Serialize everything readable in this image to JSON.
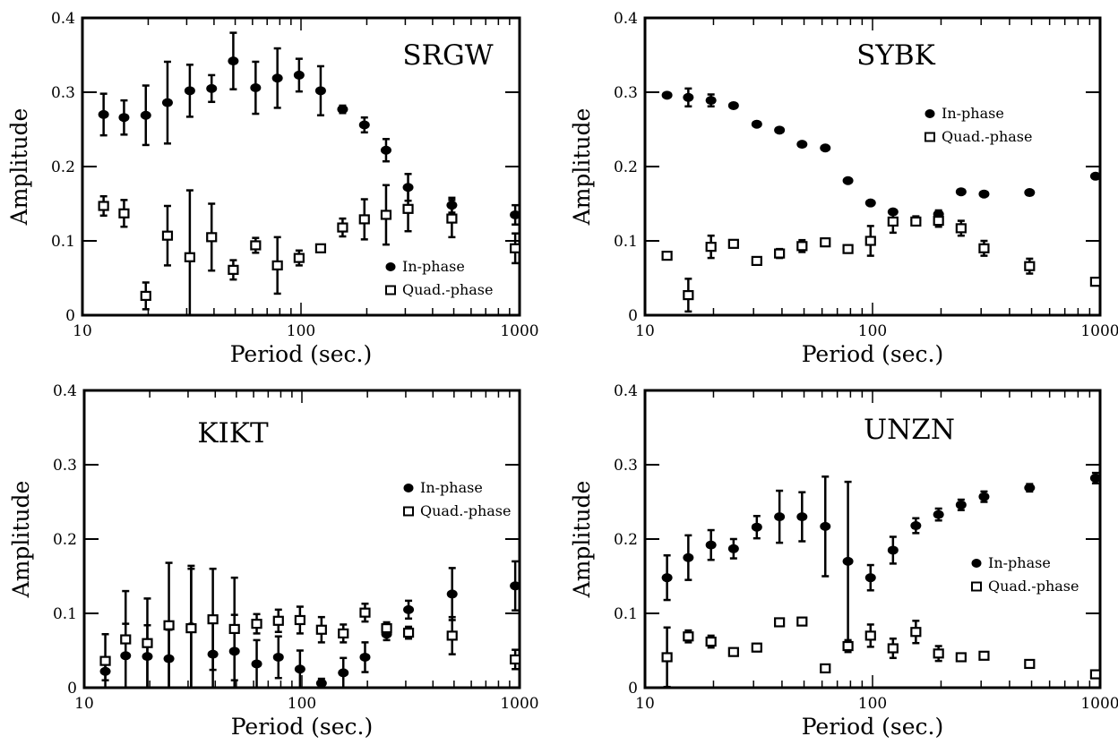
{
  "chart_data": [
    {
      "type": "scatter",
      "title": "SRGW",
      "xlabel": "Period (sec.)",
      "ylabel": "Amplitude",
      "xscale": "log",
      "xlim": [
        10,
        1000
      ],
      "ylim": [
        0,
        0.4
      ],
      "x_ticks": [
        "10",
        "100",
        "1000"
      ],
      "y_ticks": [
        "0",
        "0.1",
        "0.2",
        "0.3",
        "0.4"
      ],
      "grid": false,
      "legend_position": "lower-right",
      "series": [
        {
          "name": "In-phase",
          "marker": "filled-circle",
          "points": [
            {
              "x": 12.5,
              "y": 0.27,
              "err": 0.028
            },
            {
              "x": 15.5,
              "y": 0.266,
              "err": 0.023
            },
            {
              "x": 19.5,
              "y": 0.269,
              "err": 0.04
            },
            {
              "x": 24.5,
              "y": 0.286,
              "err": 0.055
            },
            {
              "x": 31,
              "y": 0.302,
              "err": 0.035
            },
            {
              "x": 39,
              "y": 0.305,
              "err": 0.018
            },
            {
              "x": 49,
              "y": 0.342,
              "err": 0.038
            },
            {
              "x": 62,
              "y": 0.306,
              "err": 0.035
            },
            {
              "x": 78,
              "y": 0.319,
              "err": 0.04
            },
            {
              "x": 98,
              "y": 0.323,
              "err": 0.022
            },
            {
              "x": 123,
              "y": 0.302,
              "err": 0.033
            },
            {
              "x": 155,
              "y": 0.277,
              "err": 0.005
            },
            {
              "x": 195,
              "y": 0.256,
              "err": 0.01
            },
            {
              "x": 245,
              "y": 0.222,
              "err": 0.015
            },
            {
              "x": 309,
              "y": 0.172,
              "err": 0.018
            },
            {
              "x": 490,
              "y": 0.148,
              "err": 0.01
            },
            {
              "x": 955,
              "y": 0.135,
              "err": 0.013
            }
          ]
        },
        {
          "name": "Quad.-phase",
          "marker": "open-square",
          "points": [
            {
              "x": 12.5,
              "y": 0.147,
              "err": 0.013
            },
            {
              "x": 15.5,
              "y": 0.137,
              "err": 0.018
            },
            {
              "x": 19.5,
              "y": 0.026,
              "err": 0.018
            },
            {
              "x": 24.5,
              "y": 0.107,
              "err": 0.04
            },
            {
              "x": 31,
              "y": 0.078,
              "err": 0.09
            },
            {
              "x": 39,
              "y": 0.105,
              "err": 0.045
            },
            {
              "x": 49,
              "y": 0.061,
              "err": 0.013
            },
            {
              "x": 62,
              "y": 0.094,
              "err": 0.01
            },
            {
              "x": 78,
              "y": 0.067,
              "err": 0.038
            },
            {
              "x": 98,
              "y": 0.077,
              "err": 0.01
            },
            {
              "x": 123,
              "y": 0.09,
              "err": 0.003
            },
            {
              "x": 155,
              "y": 0.118,
              "err": 0.012
            },
            {
              "x": 195,
              "y": 0.129,
              "err": 0.027
            },
            {
              "x": 245,
              "y": 0.135,
              "err": 0.04
            },
            {
              "x": 309,
              "y": 0.143,
              "err": 0.03
            },
            {
              "x": 490,
              "y": 0.13,
              "err": 0.025
            },
            {
              "x": 955,
              "y": 0.09,
              "err": 0.02
            }
          ]
        }
      ]
    },
    {
      "type": "scatter",
      "title": "SYBK",
      "xlabel": "Period (sec.)",
      "ylabel": "Amplitude",
      "xscale": "log",
      "xlim": [
        10,
        1000
      ],
      "ylim": [
        0,
        0.4
      ],
      "x_ticks": [
        "10",
        "100",
        "1000"
      ],
      "y_ticks": [
        "0",
        "0.1",
        "0.2",
        "0.3",
        "0.4"
      ],
      "grid": false,
      "legend_position": "upper-right",
      "series": [
        {
          "name": "In-phase",
          "marker": "filled-circle",
          "points": [
            {
              "x": 12.5,
              "y": 0.296,
              "err": 0
            },
            {
              "x": 15.5,
              "y": 0.293,
              "err": 0.012
            },
            {
              "x": 19.5,
              "y": 0.289,
              "err": 0.008
            },
            {
              "x": 24.5,
              "y": 0.282,
              "err": 0
            },
            {
              "x": 31,
              "y": 0.257,
              "err": 0
            },
            {
              "x": 39,
              "y": 0.249,
              "err": 0
            },
            {
              "x": 49,
              "y": 0.23,
              "err": 0
            },
            {
              "x": 62,
              "y": 0.225,
              "err": 0
            },
            {
              "x": 78,
              "y": 0.181,
              "err": 0
            },
            {
              "x": 98,
              "y": 0.151,
              "err": 0
            },
            {
              "x": 123,
              "y": 0.139,
              "err": 0
            },
            {
              "x": 155,
              "y": 0.128,
              "err": 0.005
            },
            {
              "x": 195,
              "y": 0.136,
              "err": 0.005
            },
            {
              "x": 245,
              "y": 0.166,
              "err": 0
            },
            {
              "x": 309,
              "y": 0.163,
              "err": 0
            },
            {
              "x": 490,
              "y": 0.165,
              "err": 0
            },
            {
              "x": 955,
              "y": 0.187,
              "err": 0
            }
          ]
        },
        {
          "name": "Quad.-phase",
          "marker": "open-square",
          "points": [
            {
              "x": 12.5,
              "y": 0.08,
              "err": 0
            },
            {
              "x": 15.5,
              "y": 0.027,
              "err": 0.022
            },
            {
              "x": 19.5,
              "y": 0.092,
              "err": 0.015
            },
            {
              "x": 24.5,
              "y": 0.096,
              "err": 0
            },
            {
              "x": 31,
              "y": 0.073,
              "err": 0
            },
            {
              "x": 39,
              "y": 0.083,
              "err": 0.006
            },
            {
              "x": 49,
              "y": 0.093,
              "err": 0.008
            },
            {
              "x": 62,
              "y": 0.098,
              "err": 0.005
            },
            {
              "x": 78,
              "y": 0.089,
              "err": 0.005
            },
            {
              "x": 98,
              "y": 0.1,
              "err": 0.02
            },
            {
              "x": 123,
              "y": 0.126,
              "err": 0.015
            },
            {
              "x": 155,
              "y": 0.126,
              "err": 0.005
            },
            {
              "x": 195,
              "y": 0.127,
              "err": 0.008
            },
            {
              "x": 245,
              "y": 0.117,
              "err": 0.01
            },
            {
              "x": 309,
              "y": 0.09,
              "err": 0.01
            },
            {
              "x": 490,
              "y": 0.066,
              "err": 0.01
            },
            {
              "x": 955,
              "y": 0.045,
              "err": 0.005
            }
          ]
        }
      ]
    },
    {
      "type": "scatter",
      "title": "KIKT",
      "xlabel": "Period (sec.)",
      "ylabel": "Amplitude",
      "xscale": "log",
      "xlim": [
        10,
        1000
      ],
      "ylim": [
        0,
        0.4
      ],
      "x_ticks": [
        "10",
        "100",
        "1000"
      ],
      "y_ticks": [
        "0",
        "0.1",
        "0.2",
        "0.3",
        "0.4"
      ],
      "grid": false,
      "legend_position": "upper-right",
      "series": [
        {
          "name": "In-phase",
          "marker": "filled-circle",
          "points": [
            {
              "x": 12.5,
              "y": 0.022,
              "err": 0.012
            },
            {
              "x": 15.5,
              "y": 0.043,
              "err": 0.043
            },
            {
              "x": 19.5,
              "y": 0.042,
              "err": 0.042
            },
            {
              "x": 24.5,
              "y": 0.039,
              "err": 0.039
            },
            {
              "x": 31,
              "y": 0.082,
              "err": 0.082
            },
            {
              "x": 39,
              "y": 0.045,
              "err": 0.045
            },
            {
              "x": 49,
              "y": 0.049,
              "err": 0.049
            },
            {
              "x": 62,
              "y": 0.032,
              "err": 0.032
            },
            {
              "x": 78,
              "y": 0.041,
              "err": 0.028
            },
            {
              "x": 98,
              "y": 0.025,
              "err": 0.025
            },
            {
              "x": 123,
              "y": 0.006,
              "err": 0.006
            },
            {
              "x": 155,
              "y": 0.02,
              "err": 0.02
            },
            {
              "x": 195,
              "y": 0.041,
              "err": 0.02
            },
            {
              "x": 245,
              "y": 0.072,
              "err": 0.008
            },
            {
              "x": 309,
              "y": 0.105,
              "err": 0.012
            },
            {
              "x": 490,
              "y": 0.126,
              "err": 0.035
            },
            {
              "x": 955,
              "y": 0.137,
              "err": 0.033
            }
          ]
        },
        {
          "name": "Quad.-phase",
          "marker": "open-square",
          "points": [
            {
              "x": 12.5,
              "y": 0.036,
              "err": 0.036
            },
            {
              "x": 15.5,
              "y": 0.065,
              "err": 0.065
            },
            {
              "x": 19.5,
              "y": 0.06,
              "err": 0.06
            },
            {
              "x": 24.5,
              "y": 0.084,
              "err": 0.084
            },
            {
              "x": 31,
              "y": 0.08,
              "err": 0.08
            },
            {
              "x": 39,
              "y": 0.092,
              "err": 0.068
            },
            {
              "x": 49,
              "y": 0.079,
              "err": 0.069
            },
            {
              "x": 62,
              "y": 0.086,
              "err": 0.013
            },
            {
              "x": 78,
              "y": 0.09,
              "err": 0.015
            },
            {
              "x": 98,
              "y": 0.091,
              "err": 0.018
            },
            {
              "x": 123,
              "y": 0.078,
              "err": 0.017
            },
            {
              "x": 155,
              "y": 0.073,
              "err": 0.012
            },
            {
              "x": 195,
              "y": 0.101,
              "err": 0.012
            },
            {
              "x": 245,
              "y": 0.08,
              "err": 0.008
            },
            {
              "x": 309,
              "y": 0.074,
              "err": 0.008
            },
            {
              "x": 490,
              "y": 0.07,
              "err": 0.025
            },
            {
              "x": 955,
              "y": 0.038,
              "err": 0.013
            }
          ]
        }
      ]
    },
    {
      "type": "scatter",
      "title": "UNZN",
      "xlabel": "Period (sec.)",
      "ylabel": "Amplitude",
      "xscale": "log",
      "xlim": [
        10,
        1000
      ],
      "ylim": [
        0,
        0.4
      ],
      "x_ticks": [
        "10",
        "100",
        "1000"
      ],
      "y_ticks": [
        "0",
        "0.1",
        "0.2",
        "0.3",
        "0.4"
      ],
      "grid": false,
      "legend_position": "right",
      "series": [
        {
          "name": "In-phase",
          "marker": "filled-circle",
          "points": [
            {
              "x": 12.5,
              "y": 0.148,
              "err": 0.03
            },
            {
              "x": 15.5,
              "y": 0.175,
              "err": 0.03
            },
            {
              "x": 19.5,
              "y": 0.192,
              "err": 0.02
            },
            {
              "x": 24.5,
              "y": 0.187,
              "err": 0.013
            },
            {
              "x": 31,
              "y": 0.216,
              "err": 0.015
            },
            {
              "x": 39,
              "y": 0.23,
              "err": 0.035
            },
            {
              "x": 49,
              "y": 0.23,
              "err": 0.033
            },
            {
              "x": 62,
              "y": 0.217,
              "err": 0.067
            },
            {
              "x": 78,
              "y": 0.17,
              "err": 0.107
            },
            {
              "x": 98,
              "y": 0.148,
              "err": 0.017
            },
            {
              "x": 123,
              "y": 0.185,
              "err": 0.018
            },
            {
              "x": 155,
              "y": 0.218,
              "err": 0.01
            },
            {
              "x": 195,
              "y": 0.233,
              "err": 0.008
            },
            {
              "x": 245,
              "y": 0.246,
              "err": 0.007
            },
            {
              "x": 309,
              "y": 0.257,
              "err": 0.007
            },
            {
              "x": 490,
              "y": 0.269,
              "err": 0.005
            },
            {
              "x": 955,
              "y": 0.282,
              "err": 0.007
            }
          ]
        },
        {
          "name": "Quad.-phase",
          "marker": "open-square",
          "points": [
            {
              "x": 12.5,
              "y": 0.041,
              "err": 0.04
            },
            {
              "x": 15.5,
              "y": 0.069,
              "err": 0.008
            },
            {
              "x": 19.5,
              "y": 0.062,
              "err": 0.008
            },
            {
              "x": 24.5,
              "y": 0.048,
              "err": 0
            },
            {
              "x": 31,
              "y": 0.054,
              "err": 0.005
            },
            {
              "x": 39,
              "y": 0.088,
              "err": 0
            },
            {
              "x": 49,
              "y": 0.089,
              "err": 0
            },
            {
              "x": 62,
              "y": 0.026,
              "err": 0
            },
            {
              "x": 78,
              "y": 0.056,
              "err": 0.008
            },
            {
              "x": 98,
              "y": 0.07,
              "err": 0.015
            },
            {
              "x": 123,
              "y": 0.053,
              "err": 0.013
            },
            {
              "x": 155,
              "y": 0.075,
              "err": 0.015
            },
            {
              "x": 195,
              "y": 0.046,
              "err": 0.01
            },
            {
              "x": 245,
              "y": 0.041,
              "err": 0
            },
            {
              "x": 309,
              "y": 0.043,
              "err": 0
            },
            {
              "x": 490,
              "y": 0.032,
              "err": 0
            },
            {
              "x": 955,
              "y": 0.018,
              "err": 0
            }
          ]
        }
      ]
    }
  ]
}
